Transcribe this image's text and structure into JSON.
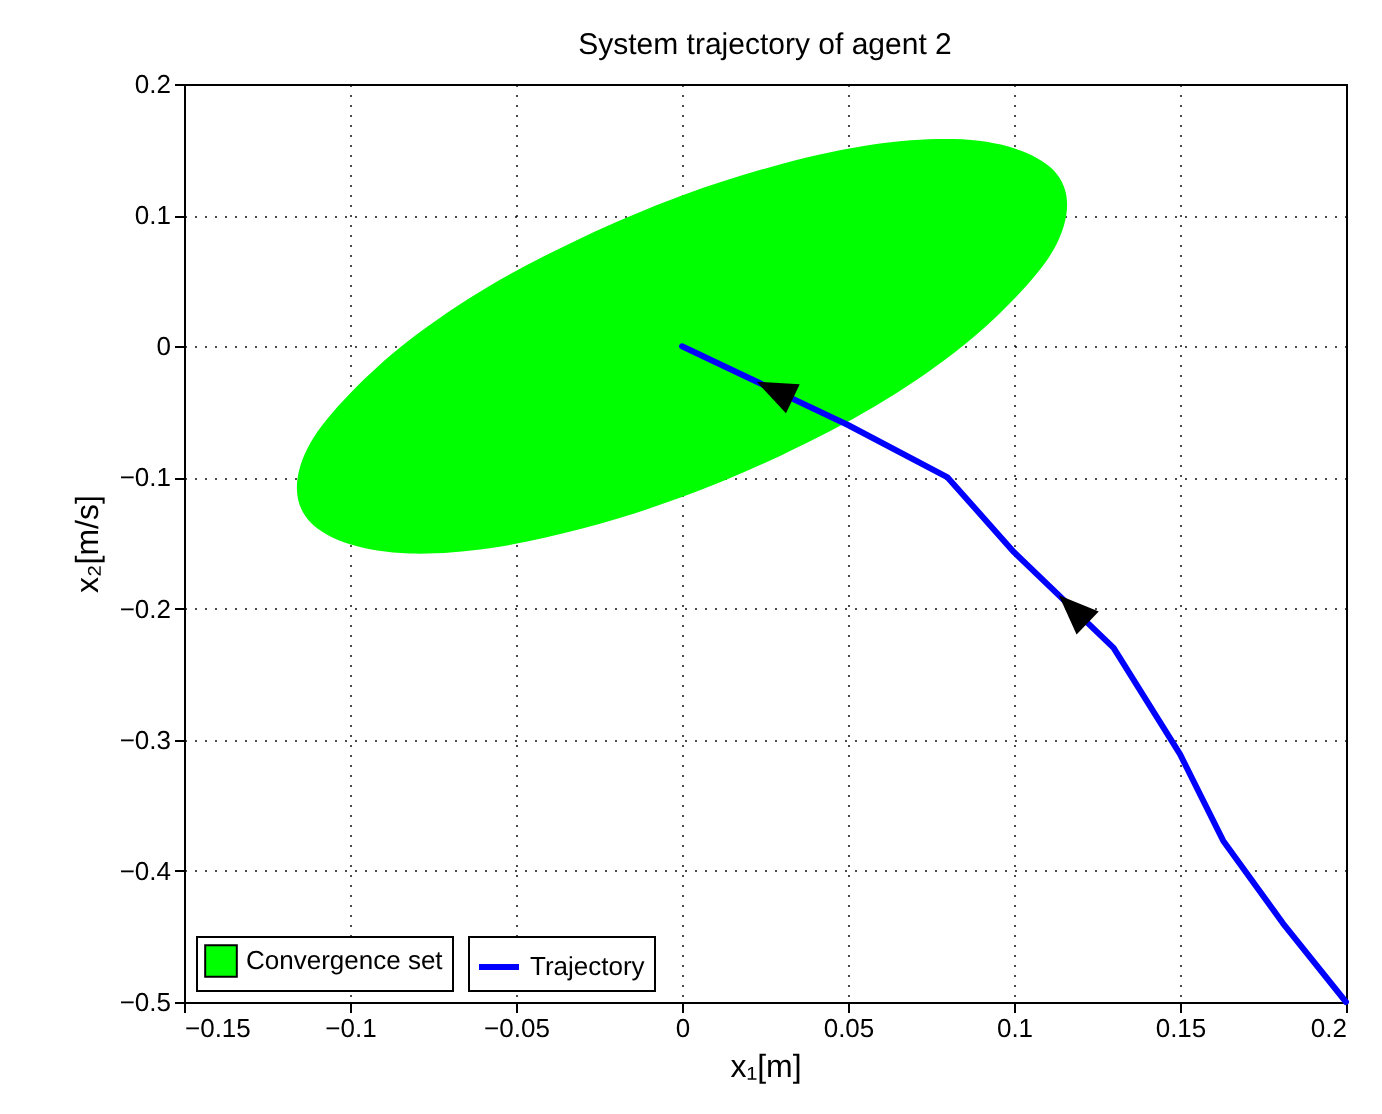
{
  "chart_data": {
    "type": "line",
    "title": "System trajectory of agent 2",
    "xlabel": "x₁[m]",
    "ylabel": "x₂[m/s]",
    "xlim": [
      -0.15,
      0.2
    ],
    "xticks": [
      -0.15,
      -0.1,
      -0.05,
      0,
      0.05,
      0.1,
      0.15,
      0.2
    ],
    "ylim": [
      -0.5,
      0.2
    ],
    "yticks": [
      -0.5,
      -0.4,
      -0.3,
      -0.2,
      -0.1,
      0,
      0.1,
      0.2
    ],
    "grid": true,
    "legend": "bottom left",
    "series": [
      {
        "name": "Convergence set",
        "type": "area",
        "color": "#00ff00",
        "x": [
          0.116,
          0.112,
          0.1,
          0.082,
          0.058,
          0.03,
          0,
          -0.03,
          -0.058,
          -0.082,
          -0.1,
          -0.112,
          -0.116,
          -0.112,
          -0.1,
          -0.082,
          -0.058,
          -0.03,
          0,
          0.03,
          0.058,
          0.082,
          0.1,
          0.112
        ],
        "values": [
          0.108,
          0.134,
          0.151,
          0.158,
          0.154,
          0.139,
          0.115,
          0.083,
          0.046,
          0.005,
          -0.036,
          -0.074,
          -0.108,
          -0.134,
          -0.151,
          -0.158,
          -0.154,
          -0.139,
          -0.115,
          -0.083,
          -0.046,
          -0.005,
          0.036,
          0.074
        ]
      },
      {
        "name": "Trajectory",
        "type": "line",
        "color": "#0000ff",
        "x": [
          0,
          0.05,
          0.08,
          0.1,
          0.13,
          0.15,
          0.163,
          0.181,
          0.2
        ],
        "values": [
          0,
          -0.06,
          -0.1,
          -0.157,
          -0.23,
          -0.311,
          -0.377,
          -0.44,
          -0.5
        ]
      }
    ]
  }
}
